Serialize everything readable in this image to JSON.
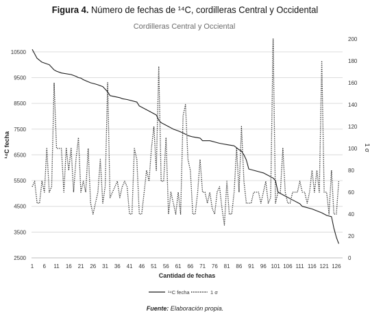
{
  "figure": {
    "number": "Figura 4.",
    "caption": "Número de fechas de ¹⁴C, cordilleras Central y Occidental"
  },
  "source": {
    "label": "Fuente:",
    "text": "Elaboración propia."
  },
  "chart_data": {
    "type": "line",
    "title": "Cordilleras Central y Occiental",
    "xlabel": "Cantidad de fechas",
    "ylabel": "¹⁴C fecha",
    "y2label": "1 σ",
    "xlim": [
      1,
      128
    ],
    "ylim": [
      2500,
      11000
    ],
    "y2lim": [
      0,
      200
    ],
    "xticks": [
      1,
      6,
      11,
      16,
      21,
      26,
      31,
      36,
      41,
      46,
      51,
      56,
      61,
      66,
      71,
      76,
      81,
      86,
      91,
      96,
      101,
      106,
      111,
      116,
      121,
      126
    ],
    "yticks": [
      2500,
      3500,
      4500,
      5500,
      6500,
      7500,
      8500,
      9500,
      10500
    ],
    "y2ticks": [
      0,
      20,
      40,
      60,
      80,
      100,
      120,
      140,
      160,
      180,
      200
    ],
    "grid": true,
    "legend": "bottom",
    "series": [
      {
        "name": "¹⁴C fecha",
        "axis": "left",
        "color": "#1a1a1a",
        "style": "solid",
        "x": [
          1,
          3,
          5,
          8,
          9,
          10,
          11,
          13,
          17,
          19,
          20,
          21,
          22,
          25,
          27,
          28,
          30,
          31,
          32,
          33,
          37,
          38,
          40,
          44,
          45,
          47,
          49,
          52,
          53,
          54,
          55,
          56,
          57,
          59,
          61,
          63,
          65,
          67,
          70,
          71,
          74,
          78,
          81,
          84,
          86,
          87,
          88,
          89,
          90,
          92,
          96,
          98,
          100,
          101,
          102,
          105,
          108,
          111,
          112,
          116,
          120,
          122,
          124,
          125,
          126,
          127
        ],
        "y": [
          10600,
          10250,
          10100,
          10000,
          9900,
          9800,
          9750,
          9680,
          9620,
          9550,
          9500,
          9480,
          9420,
          9300,
          9250,
          9220,
          9150,
          9050,
          8950,
          8800,
          8720,
          8680,
          8650,
          8550,
          8400,
          8300,
          8200,
          8050,
          7850,
          7750,
          7700,
          7650,
          7600,
          7500,
          7430,
          7350,
          7250,
          7200,
          7150,
          7050,
          7050,
          6950,
          6900,
          6850,
          6700,
          6650,
          6500,
          6300,
          5950,
          5900,
          5800,
          5700,
          5600,
          5500,
          5050,
          4900,
          4750,
          4600,
          4500,
          4400,
          4250,
          4150,
          4100,
          3650,
          3300,
          3050
        ]
      },
      {
        "name": "1 σ",
        "axis": "right",
        "color": "#1a1a1a",
        "style": "dotted",
        "x": [
          1,
          2,
          3,
          4,
          5,
          6,
          7,
          8,
          9,
          10,
          11,
          12,
          13,
          14,
          15,
          16,
          17,
          18,
          19,
          20,
          21,
          22,
          23,
          24,
          25,
          26,
          27,
          28,
          29,
          30,
          31,
          32,
          33,
          34,
          35,
          36,
          37,
          38,
          39,
          40,
          41,
          42,
          43,
          44,
          45,
          46,
          47,
          48,
          49,
          50,
          51,
          52,
          53,
          54,
          55,
          56,
          57,
          58,
          59,
          60,
          61,
          62,
          63,
          64,
          65,
          66,
          67,
          68,
          69,
          70,
          71,
          72,
          73,
          74,
          75,
          76,
          77,
          78,
          79,
          80,
          81,
          82,
          83,
          84,
          85,
          86,
          87,
          88,
          89,
          90,
          91,
          92,
          93,
          94,
          95,
          96,
          97,
          98,
          99,
          100,
          101,
          102,
          103,
          104,
          105,
          106,
          107,
          108,
          109,
          110,
          111,
          112,
          113,
          114,
          115,
          116,
          117,
          118,
          119,
          120,
          121,
          122,
          123,
          124,
          125,
          126,
          127
        ],
        "y": [
          65,
          70,
          50,
          50,
          70,
          60,
          100,
          60,
          65,
          160,
          100,
          100,
          100,
          60,
          100,
          80,
          100,
          60,
          90,
          110,
          60,
          70,
          60,
          100,
          50,
          40,
          50,
          60,
          90,
          50,
          65,
          160,
          55,
          60,
          65,
          70,
          55,
          65,
          70,
          65,
          40,
          40,
          100,
          90,
          40,
          40,
          60,
          80,
          70,
          100,
          120,
          80,
          175,
          70,
          70,
          110,
          40,
          60,
          50,
          40,
          60,
          40,
          130,
          140,
          90,
          80,
          40,
          40,
          60,
          90,
          60,
          60,
          50,
          60,
          45,
          40,
          60,
          65,
          45,
          30,
          70,
          40,
          40,
          60,
          100,
          60,
          120,
          70,
          50,
          50,
          50,
          60,
          60,
          60,
          50,
          60,
          70,
          50,
          55,
          200,
          50,
          60,
          60,
          100,
          60,
          50,
          50,
          60,
          60,
          60,
          70,
          60,
          60,
          50,
          60,
          80,
          60,
          80,
          60,
          180,
          60,
          60,
          40,
          80,
          40,
          40,
          70
        ]
      }
    ]
  }
}
